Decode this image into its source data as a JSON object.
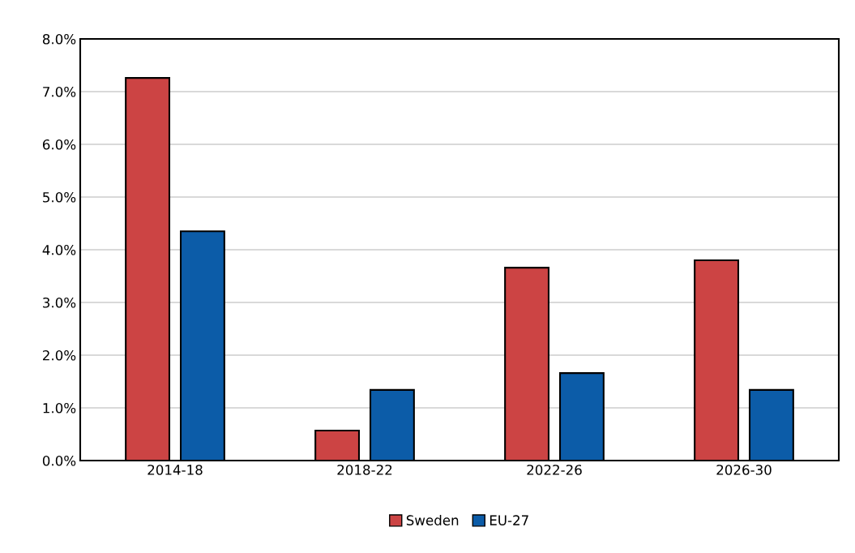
{
  "chart_data": {
    "type": "bar",
    "categories": [
      "2014-18",
      "2018-22",
      "2022-26",
      "2026-30"
    ],
    "series": [
      {
        "name": "Sweden",
        "color": "#cc4444",
        "values": [
          7.26,
          0.57,
          3.66,
          3.8
        ]
      },
      {
        "name": "EU-27",
        "color": "#0c5ca8",
        "values": [
          4.35,
          1.34,
          1.66,
          1.34
        ]
      }
    ],
    "ylim": [
      0,
      8
    ],
    "yticks": [
      {
        "value": 0,
        "label": "0.0%"
      },
      {
        "value": 1,
        "label": "1.0%"
      },
      {
        "value": 2,
        "label": "2.0%"
      },
      {
        "value": 3,
        "label": "3.0%"
      },
      {
        "value": 4,
        "label": "4.0%"
      },
      {
        "value": 5,
        "label": "5.0%"
      },
      {
        "value": 6,
        "label": "6.0%"
      },
      {
        "value": 7,
        "label": "7.0%"
      },
      {
        "value": 8,
        "label": "8.0%"
      }
    ],
    "grid": "y",
    "legend": "bottom"
  }
}
